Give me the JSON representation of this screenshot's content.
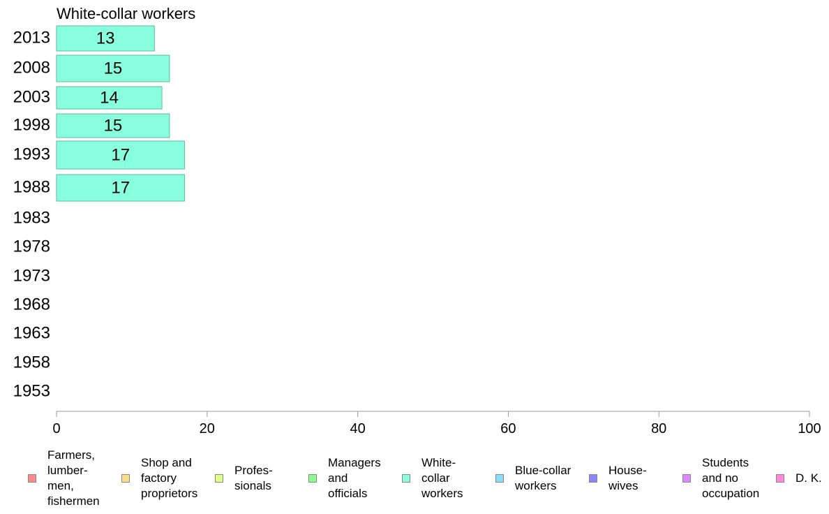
{
  "chart_data": {
    "type": "bar",
    "orientation": "horizontal",
    "title": "White-collar workers",
    "categories": [
      "2013",
      "2008",
      "2003",
      "1998",
      "1993",
      "1988",
      "1983",
      "1978",
      "1973",
      "1968",
      "1963",
      "1958",
      "1953"
    ],
    "series": [
      {
        "name": "White-collar workers",
        "values": [
          13,
          15,
          14,
          15,
          17,
          17,
          null,
          null,
          null,
          null,
          null,
          null,
          null
        ],
        "color": "#88ffdd"
      }
    ],
    "data_labels": [
      "13",
      "15",
      "14",
      "15",
      "17",
      "17",
      "",
      "",
      "",
      "",
      "",
      "",
      ""
    ],
    "xlim": [
      0,
      100
    ],
    "xticks": [
      0,
      20,
      40,
      60,
      80,
      100
    ],
    "xlabel": "",
    "ylabel": "",
    "grid": false,
    "legend": {
      "placement": "bottom",
      "items": [
        {
          "label": "Farmers,\nlumber-\nmen,\nfishermen",
          "color": "#ff8888"
        },
        {
          "label": "Shop and\nfactory\nproprietors",
          "color": "#ffdd88"
        },
        {
          "label": "Profes-\nsionals",
          "color": "#ddff88"
        },
        {
          "label": "Managers\nand\nofficials",
          "color": "#88ff88"
        },
        {
          "label": "White-\ncollar\nworkers",
          "color": "#88ffdd"
        },
        {
          "label": "Blue-collar\nworkers",
          "color": "#88ddff"
        },
        {
          "label": "House-\nwives",
          "color": "#8888ff"
        },
        {
          "label": "Students\nand no\noccupation",
          "color": "#dd88ff"
        },
        {
          "label": "D. K.",
          "color": "#ff88dd"
        }
      ]
    }
  }
}
